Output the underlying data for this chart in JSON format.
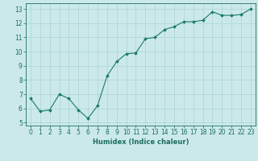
{
  "x": [
    0,
    1,
    2,
    3,
    4,
    5,
    6,
    7,
    8,
    9,
    10,
    11,
    12,
    13,
    14,
    15,
    16,
    17,
    18,
    19,
    20,
    21,
    22,
    23
  ],
  "y": [
    6.7,
    5.8,
    5.9,
    7.0,
    6.7,
    5.9,
    5.3,
    6.2,
    8.3,
    9.3,
    9.85,
    9.9,
    10.9,
    11.0,
    11.55,
    11.75,
    12.1,
    12.1,
    12.2,
    12.8,
    12.55,
    12.55,
    12.6,
    13.0
  ],
  "line_color": "#1a7a6a",
  "marker": "D",
  "marker_size": 2.0,
  "bg_color": "#cce9e9",
  "grid_color": "#aad4d4",
  "xlabel": "Humidex (Indice chaleur)",
  "xlim": [
    -0.5,
    23.5
  ],
  "ylim": [
    4.8,
    13.4
  ],
  "yticks": [
    5,
    6,
    7,
    8,
    9,
    10,
    11,
    12,
    13
  ],
  "xticks": [
    0,
    1,
    2,
    3,
    4,
    5,
    6,
    7,
    8,
    9,
    10,
    11,
    12,
    13,
    14,
    15,
    16,
    17,
    18,
    19,
    20,
    21,
    22,
    23
  ],
  "tick_color": "#1a6e60",
  "label_fontsize": 6.0,
  "tick_fontsize": 5.5
}
